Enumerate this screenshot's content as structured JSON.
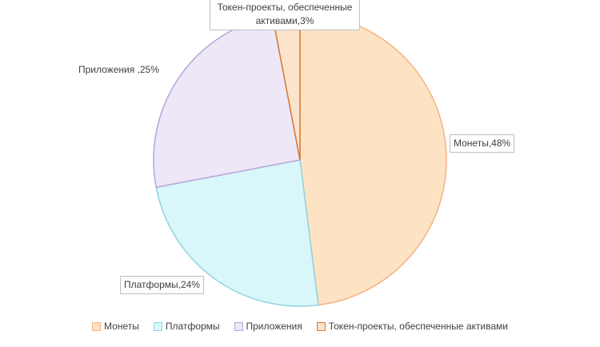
{
  "chart_data": {
    "type": "pie",
    "categories": [
      "Монеты",
      "Платформы",
      "Приложения",
      "Токен-проекты, обеспеченные активами"
    ],
    "values": [
      48,
      24,
      25,
      3
    ],
    "value_labels": [
      "Монеты,48%",
      "Платформы,24%",
      "Приложения ,25%",
      "Токен-проекты, обеспеченные активами,3%"
    ],
    "colors": [
      "#fde3c4",
      "#d9f7fa",
      "#ede7f8",
      "#fbe3cc"
    ],
    "edge_colors": [
      "#f4b183",
      "#8fd3df",
      "#b6a6da",
      "#d47a34"
    ],
    "legend": "bottom"
  }
}
